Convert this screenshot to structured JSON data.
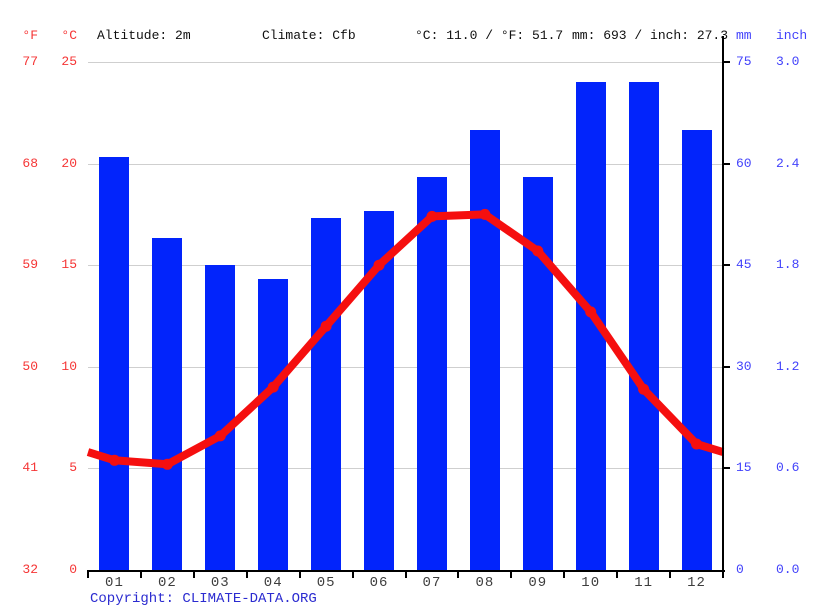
{
  "header": {
    "f_unit": "°F",
    "c_unit": "°C",
    "altitude": "Altitude: 2m",
    "climate": "Climate: Cfb",
    "temp_summary": "°C: 11.0 / °F: 51.7",
    "precip_summary": "mm: 693 / inch: 27.3",
    "mm_unit": "mm",
    "inch_unit": "inch"
  },
  "axes": {
    "fahrenheit_ticks": [
      "77",
      "68",
      "59",
      "50",
      "41",
      "32"
    ],
    "celsius_ticks": [
      "25",
      "20",
      "15",
      "10",
      "5",
      "0"
    ],
    "mm_ticks": [
      "75",
      "60",
      "45",
      "30",
      "15",
      "0"
    ],
    "inch_ticks": [
      "3.0",
      "2.4",
      "1.8",
      "1.2",
      "0.6",
      "0.0"
    ]
  },
  "chart_data": {
    "type": "bar+line",
    "categories": [
      "01",
      "02",
      "03",
      "04",
      "05",
      "06",
      "07",
      "08",
      "09",
      "10",
      "11",
      "12"
    ],
    "series": [
      {
        "name": "precipitation",
        "type": "bar",
        "unit": "mm",
        "values": [
          61,
          49,
          45,
          43,
          52,
          53,
          58,
          65,
          58,
          72,
          72,
          65
        ]
      },
      {
        "name": "temperature",
        "type": "line",
        "unit": "°C",
        "values": [
          5.4,
          5.2,
          6.6,
          9.0,
          12.0,
          15.0,
          17.4,
          17.5,
          15.7,
          12.7,
          8.9,
          6.2
        ]
      }
    ],
    "line_edge_left_c": 5.8,
    "line_edge_right_c": 5.8,
    "y_left_c_range": [
      0,
      25
    ],
    "y_right_mm_range": [
      0,
      75
    ],
    "grid": true,
    "legend": "none",
    "annual_mean_c": 11.0,
    "annual_mean_f": 51.7,
    "annual_precip_mm": 693,
    "annual_precip_inch": 27.3
  },
  "colors": {
    "bar_blue": "#0224fb",
    "line_red": "#f50f0f",
    "red_text": "#f53535",
    "blue_text": "#4242fb",
    "grid": "#cfcfcf",
    "axis": "#000000",
    "month_text": "#3d3d3d",
    "copyright_blue": "#2b2bd0"
  },
  "footer": {
    "copyright": "Copyright: CLIMATE-DATA.ORG"
  }
}
